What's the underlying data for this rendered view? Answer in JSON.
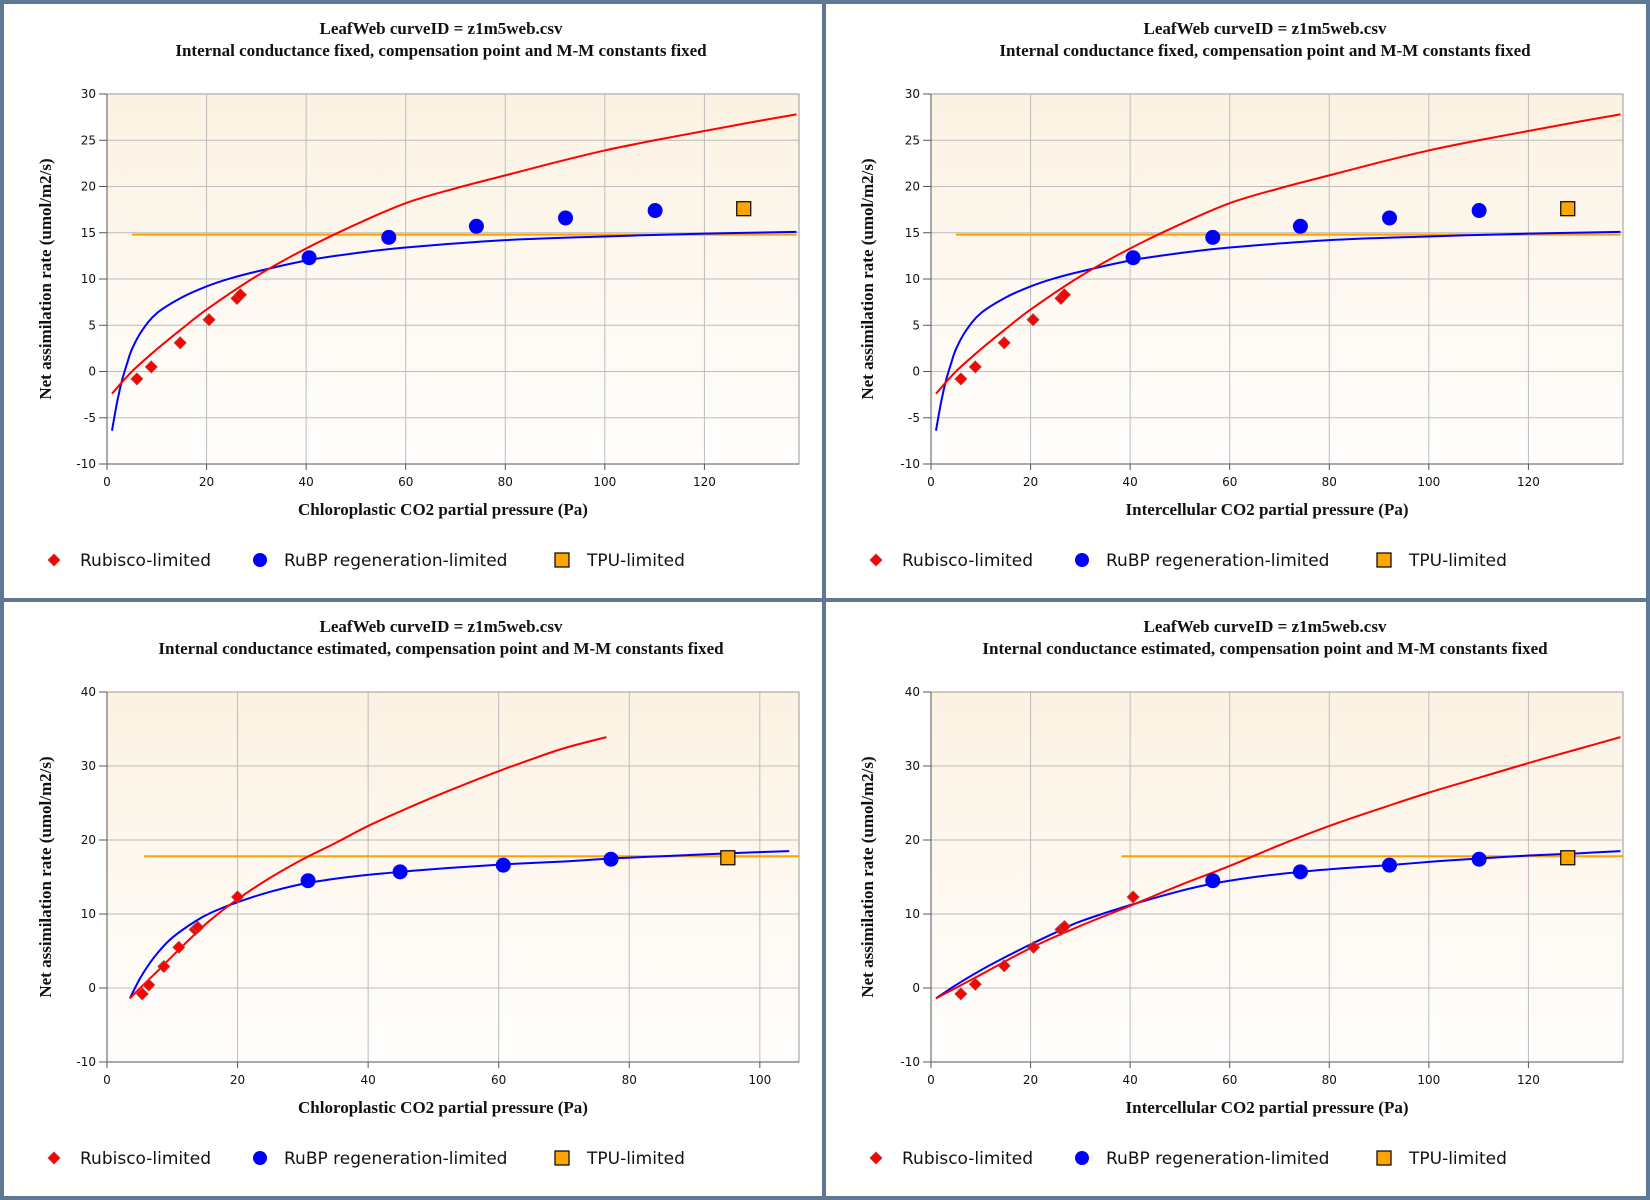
{
  "colors": {
    "frame": "#5f7896",
    "rubisco": "#ff0000",
    "rubp": "#0000ff",
    "tpu": "#ffa500",
    "tpu_line": "#ffa000",
    "grid": "#bcbcbc",
    "bg_top": "#fcf2e2",
    "bg_bottom": "#fffefd"
  },
  "legend": [
    {
      "label": "Rubisco-limited",
      "marker": "diamond"
    },
    {
      "label": "RuBP regeneration-limited",
      "marker": "circle"
    },
    {
      "label": "TPU-limited",
      "marker": "square"
    }
  ],
  "chart_data": [
    {
      "type": "scatter",
      "title": "LeafWeb curveID = z1m5web.csv",
      "subtitle": "Internal conductance fixed, compensation point and M-M constants fixed",
      "xlabel": "Chloroplastic CO2 partial pressure (Pa)",
      "ylabel": "Net assimilation rate (umol/m2/s)",
      "xlim": [
        0,
        139
      ],
      "ylim": [
        -10,
        30
      ],
      "xticks": [
        0,
        20,
        40,
        60,
        80,
        100,
        120
      ],
      "yticks": [
        -10,
        -5,
        0,
        5,
        10,
        15,
        20,
        25,
        30
      ],
      "grid": true,
      "legend_position": "bottom",
      "points": {
        "rubisco": [
          [
            6.0,
            -0.8
          ],
          [
            8.9,
            0.5
          ],
          [
            14.7,
            3.1
          ],
          [
            20.5,
            5.6
          ],
          [
            26.1,
            7.9
          ],
          [
            26.8,
            8.3
          ]
        ],
        "rubp": [
          [
            40.6,
            12.3
          ],
          [
            56.6,
            14.5
          ],
          [
            74.2,
            15.7
          ],
          [
            92.1,
            16.6
          ],
          [
            110.1,
            17.4
          ]
        ],
        "tpu": [
          [
            127.9,
            17.6
          ]
        ]
      },
      "curves": {
        "rubisco": [
          [
            1,
            -2.4
          ],
          [
            5,
            0.0
          ],
          [
            10,
            2.4
          ],
          [
            15,
            4.6
          ],
          [
            20,
            6.7
          ],
          [
            30,
            10.3
          ],
          [
            40,
            13.3
          ],
          [
            50,
            15.9
          ],
          [
            60,
            18.2
          ],
          [
            70,
            19.8
          ],
          [
            80,
            21.2
          ],
          [
            90,
            22.6
          ],
          [
            100,
            23.9
          ],
          [
            110,
            25.0
          ],
          [
            120,
            26.0
          ],
          [
            130,
            27.0
          ],
          [
            138.5,
            27.8
          ]
        ],
        "rubp": [
          [
            1,
            -6.4
          ],
          [
            2,
            -3.4
          ],
          [
            3,
            -1.0
          ],
          [
            4,
            0.8
          ],
          [
            5,
            2.4
          ],
          [
            7,
            4.4
          ],
          [
            10,
            6.3
          ],
          [
            15,
            8.0
          ],
          [
            20,
            9.2
          ],
          [
            25,
            10.1
          ],
          [
            30,
            10.8
          ],
          [
            40,
            12.0
          ],
          [
            50,
            12.8
          ],
          [
            60,
            13.4
          ],
          [
            80,
            14.2
          ],
          [
            100,
            14.6
          ],
          [
            120,
            14.9
          ],
          [
            138.5,
            15.1
          ]
        ],
        "tpu": [
          [
            5,
            14.8
          ],
          [
            138.5,
            14.8
          ]
        ]
      }
    },
    {
      "type": "scatter",
      "title": "LeafWeb curveID = z1m5web.csv",
      "subtitle": "Internal conductance fixed, compensation point and M-M constants fixed",
      "xlabel": "Intercellular CO2 partial pressure (Pa)",
      "ylabel": "Net assimilation rate (umol/m2/s)",
      "xlim": [
        0,
        139
      ],
      "ylim": [
        -10,
        30
      ],
      "xticks": [
        0,
        20,
        40,
        60,
        80,
        100,
        120
      ],
      "yticks": [
        -10,
        -5,
        0,
        5,
        10,
        15,
        20,
        25,
        30
      ],
      "grid": true,
      "legend_position": "bottom",
      "points": {
        "rubisco": [
          [
            6.0,
            -0.8
          ],
          [
            8.9,
            0.5
          ],
          [
            14.7,
            3.1
          ],
          [
            20.5,
            5.6
          ],
          [
            26.1,
            7.9
          ],
          [
            26.8,
            8.3
          ]
        ],
        "rubp": [
          [
            40.6,
            12.3
          ],
          [
            56.6,
            14.5
          ],
          [
            74.2,
            15.7
          ],
          [
            92.1,
            16.6
          ],
          [
            110.1,
            17.4
          ]
        ],
        "tpu": [
          [
            127.9,
            17.6
          ]
        ]
      },
      "curves": {
        "rubisco": [
          [
            1,
            -2.4
          ],
          [
            5,
            0.0
          ],
          [
            10,
            2.4
          ],
          [
            15,
            4.6
          ],
          [
            20,
            6.7
          ],
          [
            30,
            10.3
          ],
          [
            40,
            13.3
          ],
          [
            50,
            15.9
          ],
          [
            60,
            18.2
          ],
          [
            70,
            19.8
          ],
          [
            80,
            21.2
          ],
          [
            90,
            22.6
          ],
          [
            100,
            23.9
          ],
          [
            110,
            25.0
          ],
          [
            120,
            26.0
          ],
          [
            130,
            27.0
          ],
          [
            138.5,
            27.8
          ]
        ],
        "rubp": [
          [
            1,
            -6.4
          ],
          [
            2,
            -3.4
          ],
          [
            3,
            -1.0
          ],
          [
            4,
            0.8
          ],
          [
            5,
            2.4
          ],
          [
            7,
            4.4
          ],
          [
            10,
            6.3
          ],
          [
            15,
            8.0
          ],
          [
            20,
            9.2
          ],
          [
            25,
            10.1
          ],
          [
            30,
            10.8
          ],
          [
            40,
            12.0
          ],
          [
            50,
            12.8
          ],
          [
            60,
            13.4
          ],
          [
            80,
            14.2
          ],
          [
            100,
            14.6
          ],
          [
            120,
            14.9
          ],
          [
            138.5,
            15.1
          ]
        ],
        "tpu": [
          [
            5,
            14.8
          ],
          [
            138.5,
            14.8
          ]
        ]
      }
    },
    {
      "type": "scatter",
      "title": "LeafWeb curveID = z1m5web.csv",
      "subtitle": "Internal conductance estimated, compensation point and M-M constants fixed",
      "xlabel": "Chloroplastic CO2 partial pressure (Pa)",
      "ylabel": "Net assimilation rate (umol/m2/s)",
      "xlim": [
        0,
        106
      ],
      "ylim": [
        -10,
        40
      ],
      "xticks": [
        0,
        20,
        40,
        60,
        80,
        100
      ],
      "yticks": [
        -10,
        0,
        10,
        20,
        30,
        40
      ],
      "grid": true,
      "legend_position": "bottom",
      "points": {
        "rubisco": [
          [
            5.4,
            -0.8
          ],
          [
            6.4,
            0.4
          ],
          [
            8.7,
            2.9
          ],
          [
            11.0,
            5.5
          ],
          [
            13.5,
            7.9
          ],
          [
            13.9,
            8.2
          ],
          [
            20.0,
            12.3
          ]
        ],
        "rubp": [
          [
            30.8,
            14.5
          ],
          [
            44.9,
            15.7
          ],
          [
            60.7,
            16.6
          ],
          [
            77.2,
            17.4
          ]
        ],
        "tpu": [
          [
            95.1,
            17.6
          ]
        ]
      },
      "curves": {
        "rubisco": [
          [
            3.5,
            -1.4
          ],
          [
            6,
            0.8
          ],
          [
            8,
            2.5
          ],
          [
            10,
            4.3
          ],
          [
            13.5,
            7.3
          ],
          [
            16,
            9.3
          ],
          [
            20,
            12.0
          ],
          [
            25,
            14.9
          ],
          [
            30,
            17.4
          ],
          [
            35,
            19.6
          ],
          [
            40,
            21.9
          ],
          [
            45,
            23.9
          ],
          [
            50,
            25.8
          ],
          [
            55,
            27.6
          ],
          [
            60,
            29.3
          ],
          [
            65,
            30.9
          ],
          [
            70,
            32.4
          ],
          [
            76.5,
            33.9
          ]
        ],
        "rubp": [
          [
            3.5,
            -1.4
          ],
          [
            5,
            1.2
          ],
          [
            6.5,
            3.3
          ],
          [
            8,
            5.0
          ],
          [
            10,
            6.8
          ],
          [
            13.5,
            9.0
          ],
          [
            16,
            10.2
          ],
          [
            20,
            11.6
          ],
          [
            25,
            13.0
          ],
          [
            30.8,
            14.2
          ],
          [
            38,
            15.1
          ],
          [
            45,
            15.7
          ],
          [
            52,
            16.2
          ],
          [
            60.7,
            16.7
          ],
          [
            70,
            17.1
          ],
          [
            77.2,
            17.5
          ],
          [
            85,
            17.8
          ],
          [
            95,
            18.2
          ],
          [
            104.5,
            18.5
          ]
        ],
        "tpu": [
          [
            5.7,
            17.8
          ],
          [
            106,
            17.8
          ]
        ]
      }
    },
    {
      "type": "scatter",
      "title": "LeafWeb curveID = z1m5web.csv",
      "subtitle": "Internal conductance estimated, compensation point and M-M constants fixed",
      "xlabel": "Intercellular CO2 partial pressure (Pa)",
      "ylabel": "Net assimilation rate (umol/m2/s)",
      "xlim": [
        0,
        139
      ],
      "ylim": [
        -10,
        40
      ],
      "xticks": [
        0,
        20,
        40,
        60,
        80,
        100,
        120
      ],
      "yticks": [
        -10,
        0,
        10,
        20,
        30,
        40
      ],
      "grid": true,
      "legend_position": "bottom",
      "points": {
        "rubisco": [
          [
            6.0,
            -0.8
          ],
          [
            8.9,
            0.5
          ],
          [
            14.7,
            3.0
          ],
          [
            20.6,
            5.5
          ],
          [
            26.1,
            7.9
          ],
          [
            26.8,
            8.3
          ],
          [
            40.6,
            12.3
          ]
        ],
        "rubp": [
          [
            56.6,
            14.5
          ],
          [
            74.2,
            15.7
          ],
          [
            92.1,
            16.6
          ],
          [
            110.1,
            17.4
          ]
        ],
        "tpu": [
          [
            127.9,
            17.6
          ]
        ]
      },
      "curves": {
        "rubisco": [
          [
            1,
            -1.4
          ],
          [
            10,
            1.8
          ],
          [
            20,
            5.4
          ],
          [
            30,
            8.4
          ],
          [
            40,
            11.1
          ],
          [
            50,
            13.9
          ],
          [
            60,
            16.5
          ],
          [
            70,
            19.3
          ],
          [
            80,
            21.9
          ],
          [
            90,
            24.2
          ],
          [
            100,
            26.4
          ],
          [
            110,
            28.4
          ],
          [
            120,
            30.4
          ],
          [
            130,
            32.3
          ],
          [
            138.5,
            33.9
          ]
        ],
        "rubp": [
          [
            1,
            -1.4
          ],
          [
            5,
            0.4
          ],
          [
            10,
            2.4
          ],
          [
            15,
            4.2
          ],
          [
            20,
            5.9
          ],
          [
            26,
            7.8
          ],
          [
            30,
            9.0
          ],
          [
            40,
            11.2
          ],
          [
            50,
            13.1
          ],
          [
            56.6,
            14.1
          ],
          [
            65,
            15.0
          ],
          [
            74.2,
            15.7
          ],
          [
            83,
            16.2
          ],
          [
            92.1,
            16.6
          ],
          [
            101,
            17.1
          ],
          [
            110.1,
            17.5
          ],
          [
            120,
            17.9
          ],
          [
            130,
            18.2
          ],
          [
            138.5,
            18.5
          ]
        ],
        "tpu": [
          [
            38.3,
            17.8
          ],
          [
            139,
            17.8
          ]
        ]
      }
    }
  ]
}
